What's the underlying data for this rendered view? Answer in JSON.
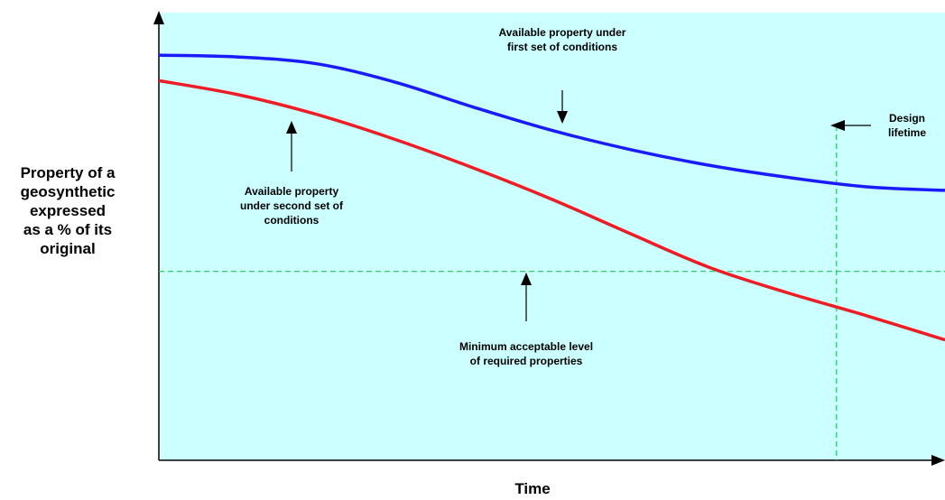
{
  "chart_data": {
    "type": "line",
    "xlabel": "Time",
    "ylabel_lines": [
      "Property of a",
      "geosynthetic",
      "expressed",
      "as a % of its",
      "original"
    ],
    "grid": false,
    "series": [
      {
        "name": "Available property under first set of conditions",
        "color": "#1a1aff",
        "x": [
          0,
          0.1,
          0.2,
          0.3,
          0.4,
          0.5,
          0.6,
          0.7,
          0.8,
          0.9,
          1.0
        ],
        "y": [
          0.905,
          0.901,
          0.886,
          0.845,
          0.789,
          0.737,
          0.694,
          0.659,
          0.632,
          0.611,
          0.603
        ]
      },
      {
        "name": "Available property under second set of conditions",
        "color": "#ee1c24",
        "x": [
          0,
          0.1,
          0.2,
          0.3,
          0.4,
          0.5,
          0.6,
          0.7,
          0.8,
          0.9,
          1.0
        ],
        "y": [
          0.848,
          0.817,
          0.773,
          0.717,
          0.653,
          0.583,
          0.506,
          0.431,
          0.374,
          0.323,
          0.269
        ]
      }
    ],
    "reference_lines": [
      {
        "orientation": "horizontal",
        "value": 0.422,
        "style": "dashed",
        "color": "#22c55e"
      },
      {
        "orientation": "vertical",
        "value": 0.862,
        "style": "dashed",
        "color": "#22c55e"
      }
    ]
  },
  "annotations": {
    "first_conditions": [
      "Available property under",
      "first set of conditions"
    ],
    "second_conditions": [
      "Available property",
      "under second set of",
      "conditions"
    ],
    "design_lifetime": [
      "Design",
      "lifetime"
    ],
    "minimum_level": [
      "Minimum acceptable level",
      "of required properties"
    ]
  },
  "colors": {
    "plot_background": "#ccffff",
    "axis": "#000000"
  }
}
